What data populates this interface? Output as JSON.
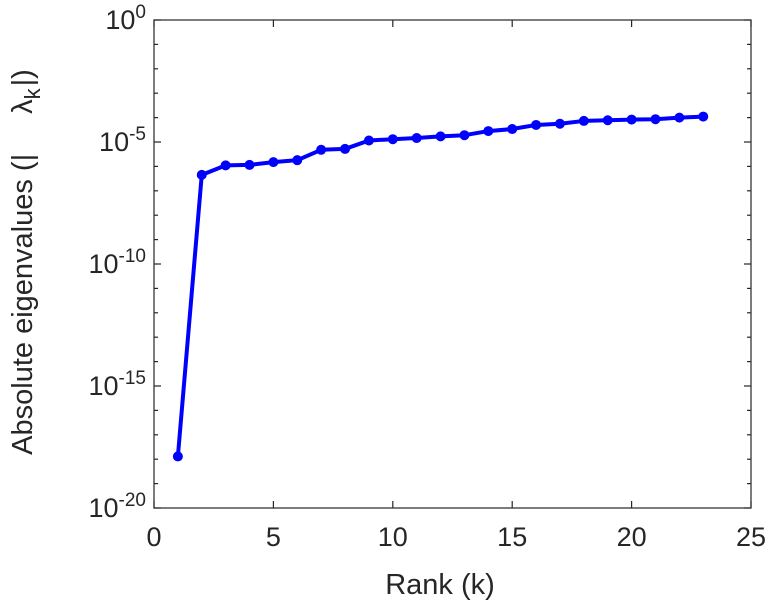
{
  "chart_data": {
    "type": "line",
    "x_axis": {
      "label": "Rank (k)",
      "range": [
        0,
        25
      ],
      "ticks": [
        0,
        5,
        10,
        15,
        20,
        25
      ],
      "tick_labels": [
        "0",
        "5",
        "10",
        "15",
        "20",
        "25"
      ]
    },
    "y_axis": {
      "label": "Absolute eigenvalues (|λ_k|)",
      "label_prefix": "Absolute eigenvalues (|",
      "label_symbol": "λ",
      "label_subscript": "k",
      "label_suffix": "|)",
      "scale": "log",
      "range": [
        1e-20,
        1
      ],
      "ticks": [
        1e-20,
        1e-15,
        1e-10,
        1e-05,
        1
      ],
      "tick_labels": [
        {
          "base": "10",
          "exp": "-20"
        },
        {
          "base": "10",
          "exp": "-15"
        },
        {
          "base": "10",
          "exp": "-10"
        },
        {
          "base": "10",
          "exp": "-5"
        },
        {
          "base": "10",
          "exp": "0"
        }
      ]
    },
    "grid": false,
    "series": [
      {
        "color": "#0000ff",
        "marker": "circle",
        "x": [
          1,
          2,
          3,
          4,
          5,
          6,
          7,
          8,
          9,
          10,
          11,
          12,
          13,
          14,
          15,
          16,
          17,
          18,
          19,
          20,
          21,
          22,
          23
        ],
        "y": [
          1.3e-18,
          4.5e-07,
          1.1e-06,
          1.15e-06,
          1.5e-06,
          1.8e-06,
          4.8e-06,
          5.2e-06,
          1.15e-05,
          1.3e-05,
          1.45e-05,
          1.7e-05,
          1.9e-05,
          2.8e-05,
          3.4e-05,
          5e-05,
          5.6e-05,
          7.3e-05,
          7.8e-05,
          8.3e-05,
          8.6e-05,
          0.0001,
          0.00011
        ]
      }
    ]
  }
}
